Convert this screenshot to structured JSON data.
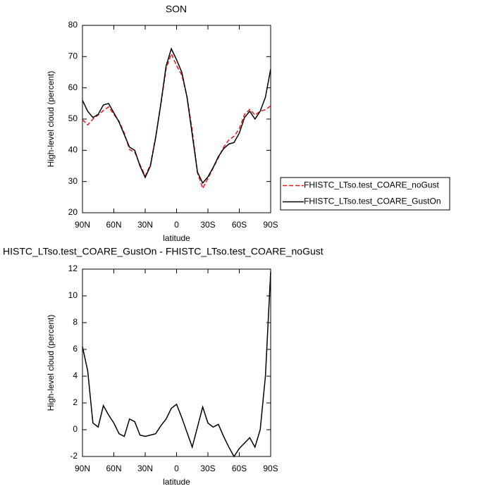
{
  "chart_data": [
    {
      "type": "line",
      "title": "SON",
      "xlabel": "latitude",
      "ylabel": "High-level cloud (percent)",
      "x": [
        90,
        85,
        80,
        75,
        70,
        65,
        60,
        55,
        50,
        45,
        40,
        35,
        30,
        25,
        20,
        15,
        10,
        5,
        0,
        -5,
        -10,
        -15,
        -20,
        -25,
        -30,
        -35,
        -40,
        -45,
        -50,
        -55,
        -60,
        -65,
        -70,
        -75,
        -80,
        -85,
        -90
      ],
      "series": [
        {
          "name": "FHISTC_LTso.test_COARE_noGust",
          "color": "#e8191c",
          "dashed": true,
          "values": [
            49.8,
            48.1,
            50,
            51.3,
            52.7,
            53.9,
            51.5,
            49.3,
            45.5,
            40.2,
            39.4,
            35.4,
            31.8,
            35.4,
            44.3,
            54.7,
            66.2,
            70.9,
            67.1,
            64.1,
            57.2,
            46.3,
            32.8,
            27.8,
            31,
            34.3,
            37.6,
            41,
            43.3,
            44.5,
            46.9,
            51.5,
            53.1,
            51.3,
            52.5,
            53,
            54.2
          ]
        },
        {
          "name": "FHISTC_LTso.test_COARE_GustOn",
          "color": "#000000",
          "dashed": false,
          "values": [
            56,
            52.5,
            50.5,
            51.5,
            54.5,
            55,
            52,
            49,
            45,
            41,
            40,
            35,
            31.3,
            35,
            44,
            55,
            67,
            72.5,
            69,
            65,
            57,
            45,
            33,
            29.5,
            31.5,
            34.5,
            38,
            40.5,
            42,
            42.5,
            45.5,
            50.5,
            52.5,
            50,
            52.5,
            57,
            66
          ]
        }
      ],
      "xlim": [
        90,
        -90
      ],
      "xticks": [
        {
          "value": 90,
          "label": "90N"
        },
        {
          "value": 60,
          "label": "60N"
        },
        {
          "value": 30,
          "label": "30N"
        },
        0,
        {
          "value": -30,
          "label": "30S"
        },
        {
          "value": -60,
          "label": "60S"
        },
        {
          "value": -90,
          "label": "90S"
        }
      ],
      "ylim": [
        20,
        80
      ],
      "yticks": [
        20,
        30,
        40,
        50,
        60,
        70,
        80
      ],
      "legend": "right"
    },
    {
      "type": "line",
      "title": "HISTC_LTso.test_COARE_GustOn - FHISTC_LTso.test_COARE_noGust",
      "xlabel": "latitude",
      "ylabel": "High-level cloud (percent)",
      "x": [
        90,
        85,
        80,
        75,
        70,
        65,
        60,
        55,
        50,
        45,
        40,
        35,
        30,
        25,
        20,
        15,
        10,
        5,
        0,
        -5,
        -10,
        -15,
        -20,
        -25,
        -30,
        -35,
        -40,
        -45,
        -50,
        -55,
        -60,
        -65,
        -70,
        -75,
        -80,
        -85,
        -90
      ],
      "series": [
        {
          "color": "#000000",
          "dashed": false,
          "values": [
            6.2,
            4.4,
            0.5,
            0.2,
            1.8,
            1.1,
            0.5,
            -0.3,
            -0.5,
            0.8,
            0.6,
            -0.4,
            -0.5,
            -0.4,
            -0.3,
            0.3,
            0.8,
            1.6,
            1.9,
            0.9,
            -0.2,
            -1.3,
            0.2,
            1.7,
            0.5,
            0.2,
            0.4,
            -0.5,
            -1.3,
            -2,
            -1.4,
            -1,
            -0.6,
            -1.3,
            0,
            4,
            11.8
          ]
        }
      ],
      "xlim": [
        90,
        -90
      ],
      "xticks": [
        {
          "value": 90,
          "label": "90N"
        },
        {
          "value": 60,
          "label": "60N"
        },
        {
          "value": 30,
          "label": "30N"
        },
        0,
        {
          "value": -30,
          "label": "30S"
        },
        {
          "value": -60,
          "label": "60S"
        },
        {
          "value": -90,
          "label": "90S"
        }
      ],
      "ylim": [
        -2,
        12
      ],
      "yticks": [
        -2,
        0,
        2,
        4,
        6,
        8,
        10,
        12
      ]
    }
  ]
}
